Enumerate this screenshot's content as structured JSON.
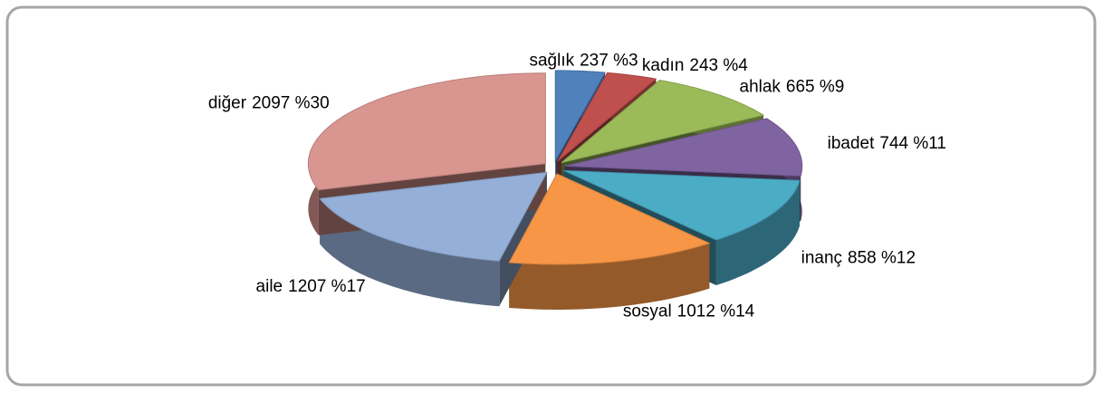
{
  "chart_data": {
    "type": "pie",
    "categories": [
      "sağlık",
      "kadın",
      "ahlak",
      "ibadet",
      "inanç",
      "sosyal",
      "aile",
      "diğer"
    ],
    "values": [
      237,
      243,
      665,
      744,
      858,
      1012,
      1207,
      2097
    ],
    "value_labels": [
      "237 %3",
      "243 %4",
      "665 %9",
      "744 %11",
      "858 %12",
      "1012 %14",
      "1207 %17",
      "2097 %30"
    ],
    "colors": [
      "#4f81bd",
      "#c0504d",
      "#9bbb59",
      "#8064a2",
      "#4bacc6",
      "#f79646",
      "#95b0d8",
      "#d9958f"
    ]
  }
}
